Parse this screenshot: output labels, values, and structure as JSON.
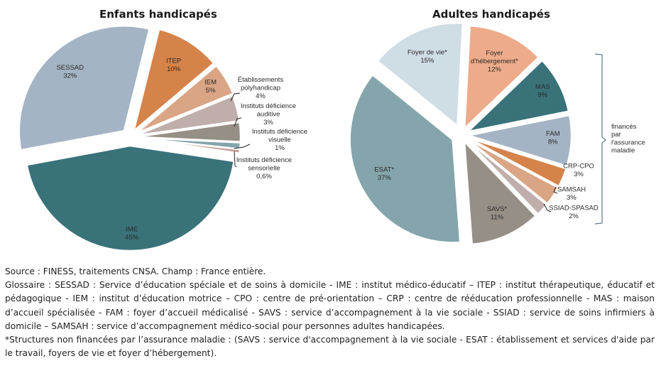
{
  "chart_data": [
    {
      "type": "pie",
      "title": "Enfants handicapés",
      "slices": [
        {
          "label": "ITEP",
          "value": 10,
          "value_label": "10%",
          "color": "#d5834a"
        },
        {
          "label": "IEM",
          "value": 5,
          "value_label": "5%",
          "color": "#d9a585"
        },
        {
          "label": "Établissements polyhandicap",
          "value": 4,
          "value_label": "4%",
          "color": "#bfaeab"
        },
        {
          "label": "Instituts déficience auditive",
          "value": 3,
          "value_label": "3%",
          "color": "#958f86"
        },
        {
          "label": "Instituts déficience visuelle",
          "value": 1,
          "value_label": "1%",
          "color": "#84a5ab"
        },
        {
          "label": "Instituts déficience sensorielle",
          "value": 0.6,
          "value_label": "0,6%",
          "color": "#c99a92"
        },
        {
          "label": "IME",
          "value": 45,
          "value_label": "45%",
          "color": "#3a727a"
        },
        {
          "label": "SESSAD",
          "value": 32,
          "value_label": "32%",
          "color": "#a4b4c4"
        }
      ]
    },
    {
      "type": "pie",
      "title": "Adultes handicapés",
      "slices": [
        {
          "label": "Foyer d'hébergement*",
          "value": 12,
          "value_label": "12%",
          "color": "#edab8a"
        },
        {
          "label": "MAS",
          "value": 9,
          "value_label": "9%",
          "color": "#3a727a"
        },
        {
          "label": "FAM",
          "value": 8,
          "value_label": "8%",
          "color": "#a4b4c4"
        },
        {
          "label": "CRP-CPO",
          "value": 3,
          "value_label": "3%",
          "color": "#d5834a"
        },
        {
          "label": "SAMSAH",
          "value": 3,
          "value_label": "3%",
          "color": "#d9a585"
        },
        {
          "label": "SSIAD-SPASAD",
          "value": 2,
          "value_label": "2%",
          "color": "#bfaeab"
        },
        {
          "label": "SAVS*",
          "value": 11,
          "value_label": "11%",
          "color": "#958f86"
        },
        {
          "label": "ESAT*",
          "value": 37,
          "value_label": "37%",
          "color": "#84a5ab"
        },
        {
          "label": "Foyer de vie*",
          "value": 15,
          "value_label": "15%",
          "color": "#cfdde5"
        }
      ],
      "annotation": "financés par l'assurance maladie"
    }
  ],
  "notes": {
    "source": "Source : FINESS, traitements CNSA. Champ : France entière.",
    "glossary": "Glossaire : SESSAD : Service d’éducation spéciale et de soins à domicile - IME : institut médico-éducatif – ITEP : institut thérapeutique, éducatif et pédagogique - IEM : institut d’éducation motrice – CPO : centre de pré-orientation – CRP : centre de rééducation professionnelle - MAS : maison d’accueil spécialisée - FAM : foyer d’accueil médicalisé - SAVS : service d’accompagnement à la vie sociale - SSIAD : service de soins infirmiers à domicile – SAMSAH : service d’accompagnement médico-social pour personnes adultes handicapées.",
    "footnote": "*Structures non financées par l’assurance maladie : (SAVS : service d'accompagnement à la vie sociale - ESAT : établissement et services d'aide par le travail, foyers de vie et foyer d’hébergement)."
  }
}
